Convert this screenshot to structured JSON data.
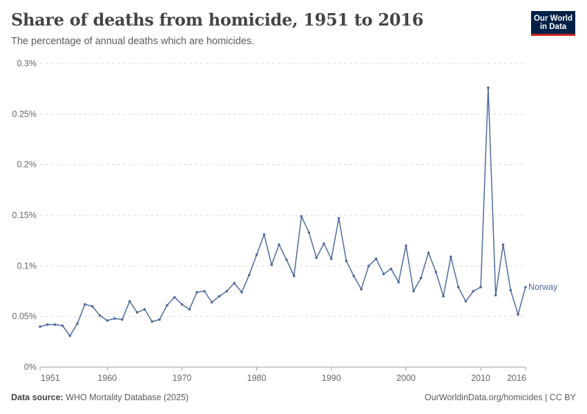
{
  "header": {
    "title": "Share of deaths from homicide, 1951 to 2016",
    "subtitle": "The percentage of annual deaths which are homicides."
  },
  "logo": {
    "line1": "Our World",
    "line2": "in Data",
    "bg_color": "#002147",
    "accent_color": "#ce261e"
  },
  "footer": {
    "source_label": "Data source:",
    "source_value": "WHO Mortality Database (2025)",
    "right_text": "OurWorldinData.org/homicides | CC BY"
  },
  "chart_data": {
    "type": "line",
    "title": "Share of deaths from homicide, 1951 to 2016",
    "subtitle": "The percentage of annual deaths which are homicides.",
    "xlim": [
      1951,
      2016
    ],
    "ylim": [
      0,
      0.3
    ],
    "x_ticks": [
      1951,
      1960,
      1970,
      1980,
      1990,
      2000,
      2010,
      2016
    ],
    "y_ticks": [
      0,
      0.05,
      0.1,
      0.15,
      0.2,
      0.25,
      0.3
    ],
    "y_tick_labels": [
      "0%",
      "0.05%",
      "0.1%",
      "0.15%",
      "0.2%",
      "0.25%",
      "0.3%"
    ],
    "grid": "horizontal dashed",
    "legend": "inline label at line end",
    "color": "#4c6a9c",
    "series": [
      {
        "name": "Norway",
        "x": [
          1951,
          1952,
          1953,
          1954,
          1955,
          1956,
          1957,
          1958,
          1959,
          1960,
          1961,
          1962,
          1963,
          1964,
          1965,
          1966,
          1967,
          1968,
          1969,
          1970,
          1971,
          1972,
          1973,
          1974,
          1975,
          1976,
          1977,
          1978,
          1979,
          1980,
          1981,
          1982,
          1983,
          1984,
          1985,
          1986,
          1987,
          1988,
          1989,
          1990,
          1991,
          1992,
          1993,
          1994,
          1995,
          1996,
          1997,
          1998,
          1999,
          2000,
          2001,
          2002,
          2003,
          2004,
          2005,
          2006,
          2007,
          2008,
          2009,
          2010,
          2011,
          2012,
          2013,
          2014,
          2015,
          2016
        ],
        "y": [
          0.04,
          0.042,
          0.042,
          0.041,
          0.031,
          0.043,
          0.062,
          0.06,
          0.051,
          0.046,
          0.048,
          0.047,
          0.065,
          0.054,
          0.057,
          0.045,
          0.047,
          0.061,
          0.069,
          0.062,
          0.057,
          0.074,
          0.075,
          0.064,
          0.07,
          0.075,
          0.083,
          0.074,
          0.091,
          0.111,
          0.131,
          0.101,
          0.121,
          0.106,
          0.09,
          0.149,
          0.133,
          0.108,
          0.122,
          0.107,
          0.147,
          0.105,
          0.09,
          0.077,
          0.1,
          0.107,
          0.092,
          0.097,
          0.084,
          0.12,
          0.075,
          0.088,
          0.113,
          0.094,
          0.07,
          0.109,
          0.079,
          0.065,
          0.075,
          0.079,
          0.276,
          0.071,
          0.121,
          0.076,
          0.052,
          0.079
        ]
      }
    ]
  }
}
